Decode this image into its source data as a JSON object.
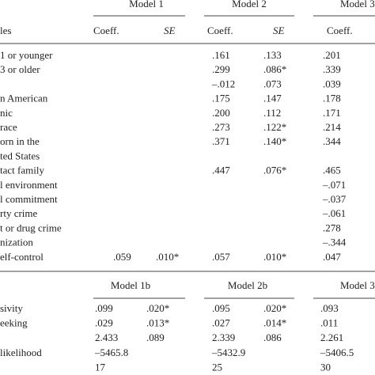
{
  "table_top": {
    "groups": [
      "Model 1",
      "Model 2",
      "Model 3"
    ],
    "row_header": "les",
    "columns": [
      "Coeff.",
      "SE",
      "Coeff.",
      "SE",
      "Coeff."
    ],
    "rows": [
      [
        "1 or younger",
        null,
        null,
        ".161",
        ".133",
        ".201"
      ],
      [
        "3 or older",
        null,
        null,
        ".299",
        ".086*",
        ".339"
      ],
      [
        null,
        null,
        null,
        "–.012",
        ".073",
        ".039"
      ],
      [
        "n American",
        null,
        null,
        ".175",
        ".147",
        ".178"
      ],
      [
        "nic",
        null,
        null,
        ".200",
        ".112",
        ".171"
      ],
      [
        "race",
        null,
        null,
        ".273",
        ".122*",
        ".214"
      ],
      [
        "orn in the",
        null,
        null,
        ".371",
        ".140*",
        ".344"
      ],
      [
        "ted States",
        null,
        null,
        null,
        null,
        null
      ],
      [
        "tact family",
        null,
        null,
        ".447",
        ".076*",
        ".465"
      ],
      [
        "l environment",
        null,
        null,
        null,
        null,
        "–.071"
      ],
      [
        "l commitment",
        null,
        null,
        null,
        null,
        "–.037"
      ],
      [
        "rty crime",
        null,
        null,
        null,
        null,
        "–.061"
      ],
      [
        "t or drug crime",
        null,
        null,
        null,
        null,
        ".278"
      ],
      [
        "nization",
        null,
        null,
        null,
        null,
        "–.344"
      ],
      [
        "elf-control",
        ".059",
        ".010*",
        ".057",
        ".010*",
        ".047"
      ]
    ]
  },
  "table_bottom": {
    "groups": [
      "Model 1b",
      "Model 2b",
      "Model 3"
    ],
    "rows": [
      [
        "sivity",
        ".099",
        ".020*",
        ".095",
        ".020*",
        ".093"
      ],
      [
        "eeking",
        ".029",
        ".013*",
        ".027",
        ".014*",
        ".011"
      ],
      [
        null,
        "2.433",
        ".089",
        "2.339",
        ".086",
        "2.261"
      ],
      [
        "likelihood",
        "–5465.8",
        null,
        "–5432.9",
        null,
        "–5406.5"
      ],
      [
        null,
        "17",
        null,
        "25",
        null,
        "30"
      ]
    ]
  }
}
